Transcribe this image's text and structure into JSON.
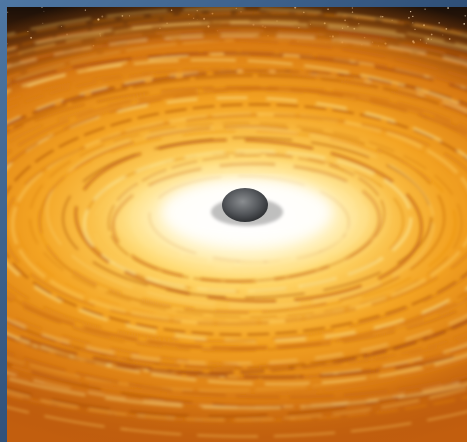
{
  "image": {
    "subject": "black-hole-accretion-disk-illustration",
    "colors": {
      "frame": "#3a5d86",
      "space": "#1a0f08",
      "disk_outer": "#b4550c",
      "disk_mid": "#f0a020",
      "disk_inner": "#ffe9a0",
      "glow": "#ffffff",
      "black_hole": "#55585c"
    }
  }
}
